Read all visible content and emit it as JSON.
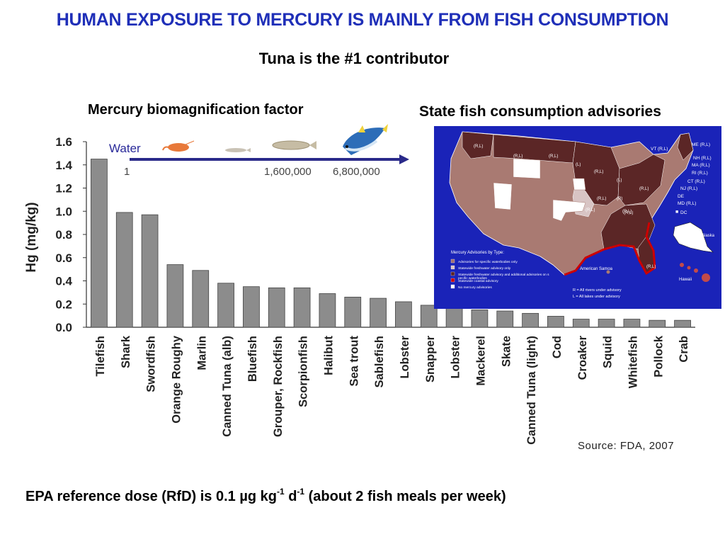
{
  "slide": {
    "title": "HUMAN EXPOSURE TO MERCURY IS MAINLY FROM FISH CONSUMPTION",
    "subtitle": "Tuna is the #1 contributor",
    "chart_heading": "Mercury biomagnification factor",
    "map_heading": "State  fish consumption advisories",
    "source": "Source: FDA, 2007",
    "footer": {
      "prefix": "EPA reference dose (RfD) is 0.1 µg kg",
      "exp1": "-1",
      "mid": " d",
      "exp2": "-1",
      "suffix": " (about 2 fish meals per week)"
    }
  },
  "biomagnification": {
    "label": "Water",
    "values": [
      "1",
      "1,600,000",
      "6,800,000"
    ]
  },
  "chart_data": {
    "type": "bar",
    "title": "",
    "xlabel": "",
    "ylabel": "Hg (mg/kg)",
    "ylim": [
      0,
      1.6
    ],
    "yticks": [
      "0.0",
      "0.2",
      "0.4",
      "0.6",
      "0.8",
      "1.0",
      "1.2",
      "1.4",
      "1.6"
    ],
    "grid": false,
    "bar_color": "#8c8c8c",
    "categories": [
      "Tilefish",
      "Shark",
      "Swordfish",
      "Orange Roughy",
      "Marlin",
      "Canned Tuna (alb)",
      "Bluefish",
      "Grouper, Rockfish",
      "Scorpionfish",
      "Halibut",
      "Sea trout",
      "Sablefish",
      "Lobster",
      "Snapper",
      "Lobster",
      "Mackerel",
      "Skate",
      "Canned Tuna (light)",
      "Cod",
      "Croaker",
      "Squid",
      "Whitefish",
      "Pollock",
      "Crab"
    ],
    "values": [
      1.45,
      0.99,
      0.97,
      0.54,
      0.49,
      0.38,
      0.35,
      0.34,
      0.34,
      0.29,
      0.26,
      0.25,
      0.22,
      0.19,
      0.18,
      0.15,
      0.14,
      0.12,
      0.095,
      0.07,
      0.07,
      0.07,
      0.06,
      0.06
    ]
  },
  "map": {
    "legend_title": "Mercury Advisories by Type:",
    "legend_items": [
      {
        "text": "Advisories for specific waterbodies only",
        "color": "#a07070"
      },
      {
        "text": "Statewide freshwater advisory only",
        "color": "#d8c4c4"
      },
      {
        "text": "Statewide freshwater advisory and additional advisories on specific waterbodies",
        "color": "#5a2222"
      },
      {
        "text": "Statewide coastal advisory",
        "color": "#cc0000"
      },
      {
        "text": "No mercury advisories",
        "color": "#ffffff"
      }
    ],
    "key_notes": [
      "R = All rivers under advisory",
      "L = All lakes under advisory"
    ],
    "state_tags": [
      "ME (R,L)",
      "VT (R,L)",
      "NH (R,L)",
      "MA (R,L)",
      "RI (R,L)",
      "CT (R,L)",
      "NJ (R,L)",
      "DE",
      "MD (R,L)",
      "DC"
    ],
    "map_marks": [
      "(R,L)",
      "(R,L)",
      "(R,L)",
      "(L)",
      "(R,L)",
      "(L)",
      "(R,L)",
      "(R)",
      "(R,L)",
      "(R,L)",
      "(R,L)",
      "(R,L)",
      "(R,L)"
    ],
    "alaska": "Alaska",
    "hawaii": "Hawaii",
    "samoa": "American Samoa"
  }
}
